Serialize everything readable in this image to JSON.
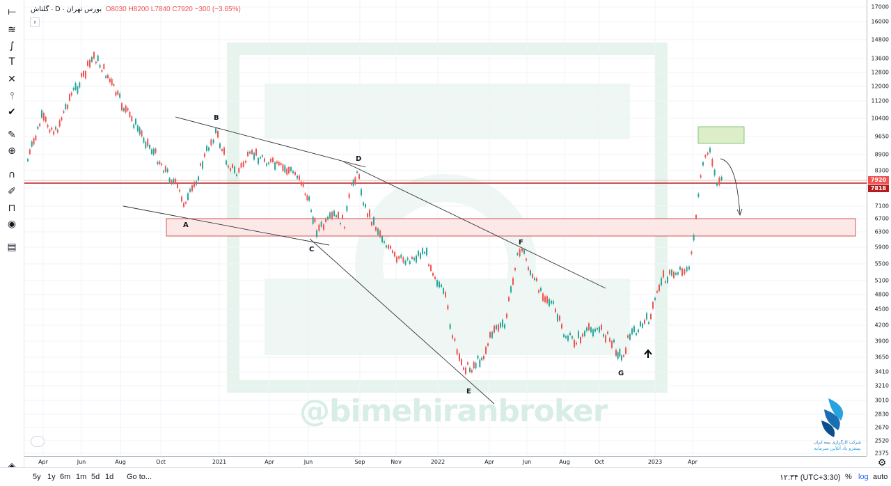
{
  "legend": {
    "symbol": "گلتاش",
    "interval": "D",
    "exchange": "بورس تهران",
    "open": "O8030",
    "high": "H8200",
    "low": "L7840",
    "close": "C7920",
    "change": "−300 (−3.65%)"
  },
  "collapse_label": "›",
  "price_ticks": [
    "17000",
    "16000",
    "14800",
    "13600",
    "12800",
    "12000",
    "11200",
    "10400",
    "9650",
    "8900",
    "8300",
    "7700",
    "7100",
    "6700",
    "6300",
    "5900",
    "5500",
    "5100",
    "4800",
    "4500",
    "4200",
    "3900",
    "3650",
    "3410",
    "3210",
    "3010",
    "2830",
    "2670",
    "2520",
    "2375"
  ],
  "price_tags": {
    "current": "7920",
    "line": "7818"
  },
  "time_ticks": [
    "Apr",
    "Jun",
    "Aug",
    "Oct",
    "2021",
    "Apr",
    "Jun",
    "Sep",
    "Nov",
    "2022",
    "Apr",
    "Jun",
    "Aug",
    "Oct",
    "2023",
    "Apr"
  ],
  "point_labels": [
    "A",
    "B",
    "C",
    "D",
    "E",
    "F",
    "G"
  ],
  "watermark": "@bimehiranbroker",
  "logo_caption_1": "شرکت کارگزاری بیمه ایران",
  "logo_caption_2": "پیشرو یاد آنلاین سرمایه",
  "bottom": {
    "ranges": [
      "5y",
      "1y",
      "6m",
      "1m",
      "5d",
      "1d"
    ],
    "goto": "Go to...",
    "time": "۱۲:۳۴ (UTC+3:30)",
    "percent": "%",
    "log": "log",
    "auto": "auto"
  },
  "icons": [
    "horizontal-line-icon",
    "fib-tool-icon",
    "path-icon",
    "text-icon",
    "pattern-icon",
    "measure-icon",
    "check-icon",
    "ruler-icon",
    "zoom-icon",
    "magnet-icon",
    "lock-draw-icon",
    "lock-icon",
    "eye-icon",
    "trash-icon",
    "layers-icon",
    "settings-icon"
  ],
  "colors": {
    "up": "#26a69a",
    "down": "#ef5350",
    "zone_red": "#c62828",
    "zone_green": "#66bb6a"
  }
}
